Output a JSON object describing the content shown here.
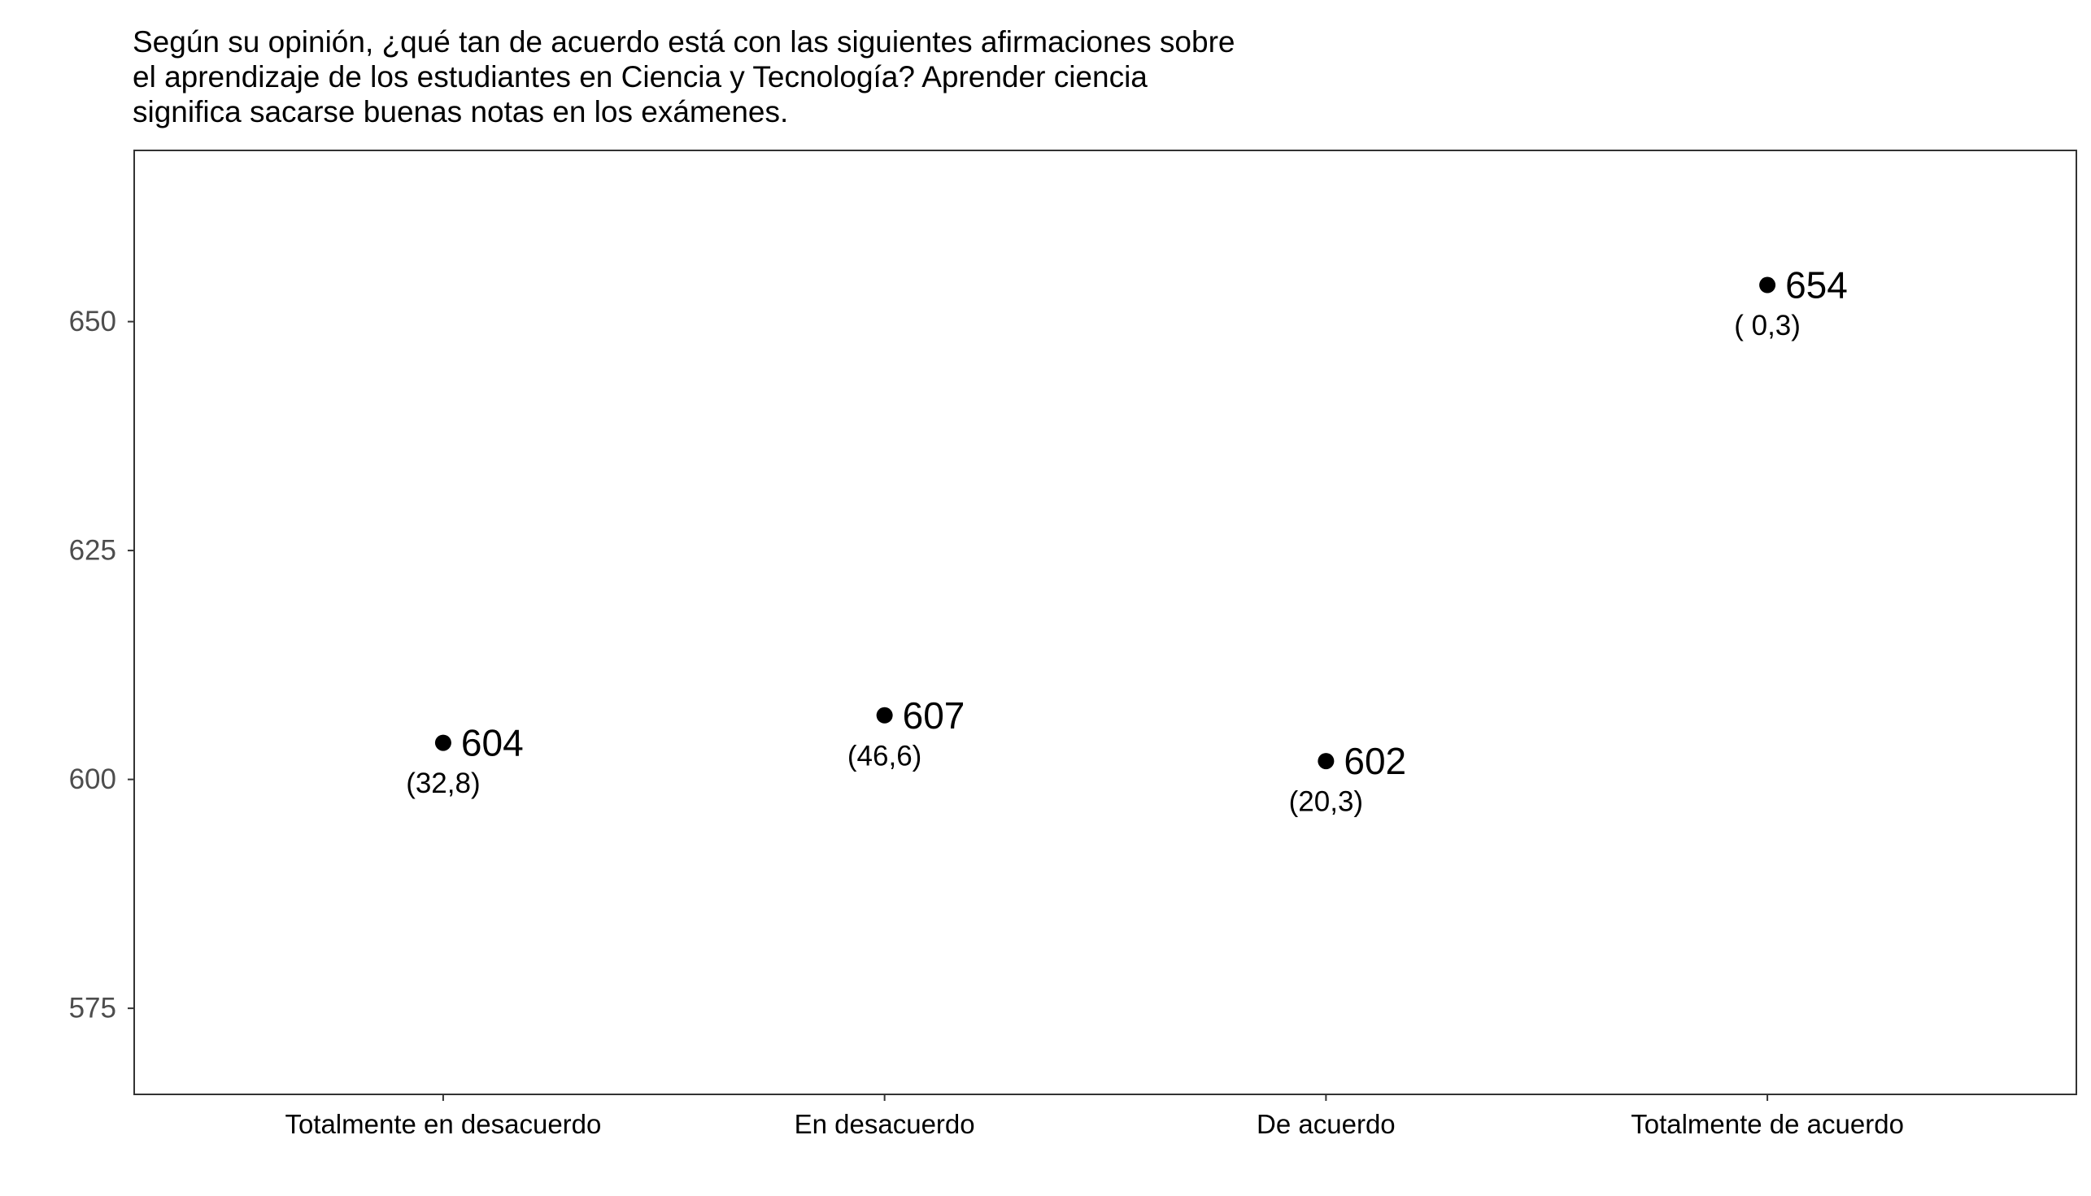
{
  "chart_data": {
    "type": "scatter",
    "title_lines": [
      "Según su opinión, ¿qué tan de acuerdo está con las siguientes afirmaciones sobre",
      "el aprendizaje de los estudiantes en Ciencia y Tecnología? Aprender ciencia",
      "significa sacarse buenas notas en los exámenes."
    ],
    "categories": [
      "Totalmente en desacuerdo",
      "En desacuerdo",
      "De acuerdo",
      "Totalmente de acuerdo"
    ],
    "values": [
      604,
      607,
      602,
      654
    ],
    "value_labels": [
      "604",
      "607",
      "602",
      "654"
    ],
    "sub_labels": [
      "(32,8)",
      "(46,6)",
      "(20,3)",
      "( 0,3)"
    ],
    "ylim": [
      565.6,
      668.7
    ],
    "yticks": [
      575,
      600,
      625,
      650
    ],
    "ytick_labels": [
      "575",
      "600",
      "625",
      "650"
    ],
    "grid": false,
    "legend": "none",
    "xlabel": "",
    "ylabel": "",
    "colors": {
      "point": "#000000",
      "frame": "#333333",
      "tick_label": "#4d4d4d"
    }
  }
}
